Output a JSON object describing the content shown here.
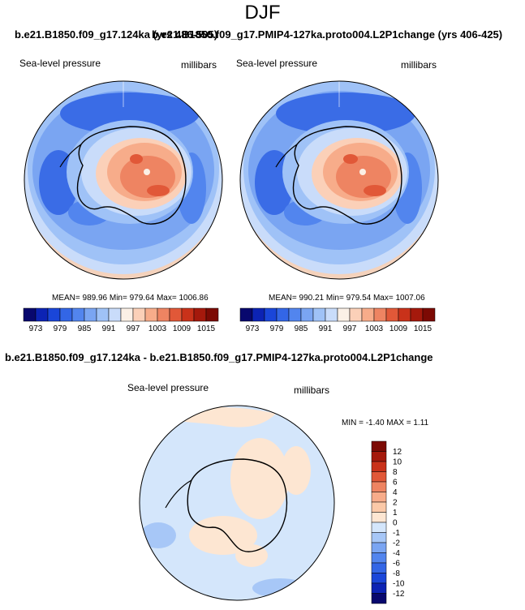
{
  "figure": {
    "title": "DJF",
    "top_case_title_a": "b.e21.B1850.f09_g17.124ka (yrs 486-505)",
    "top_case_title_b": "b.e21.B1850.f09_g17.PMIP4-127ka.proto004.L2P1change (yrs 406-425)",
    "diff_title": "b.e21.B1850.f09_g17.124ka - b.e21.B1850.f09_g17.PMIP4-127ka.proto004.L2P1change"
  },
  "chart_data": [
    {
      "type": "heatmap",
      "projection": "south-polar-stereographic",
      "panel": "left",
      "variable": "Sea-level pressure",
      "units": "millibars",
      "stats": "MEAN= 989.96  Min= 979.64  Max= 1006.86",
      "mean": 989.96,
      "min": 979.64,
      "max": 1006.86,
      "colorbar": {
        "orientation": "horizontal",
        "levels": [
          973,
          976,
          979,
          982,
          985,
          988,
          991,
          994,
          997,
          1000,
          1003,
          1006,
          1009,
          1012,
          1015
        ],
        "tick_labels": [
          "973",
          "979",
          "985",
          "991",
          "997",
          "1003",
          "1009",
          "1015"
        ],
        "colors": [
          "#08086e",
          "#0c23b4",
          "#1a46d9",
          "#3366e6",
          "#5285ee",
          "#7aa5f2",
          "#9fc2f7",
          "#c9dcfa",
          "#fbf0e6",
          "#fbd0b8",
          "#f7ac8a",
          "#ee8462",
          "#e15838",
          "#c9321a",
          "#a5190c",
          "#7c0a04"
        ]
      }
    },
    {
      "type": "heatmap",
      "projection": "south-polar-stereographic",
      "panel": "right",
      "variable": "Sea-level pressure",
      "units": "millibars",
      "stats": "MEAN= 990.21  Min= 979.54  Max= 1007.06",
      "mean": 990.21,
      "min": 979.54,
      "max": 1007.06,
      "colorbar": {
        "orientation": "horizontal",
        "levels": [
          973,
          976,
          979,
          982,
          985,
          988,
          991,
          994,
          997,
          1000,
          1003,
          1006,
          1009,
          1012,
          1015
        ],
        "tick_labels": [
          "973",
          "979",
          "985",
          "991",
          "997",
          "1003",
          "1009",
          "1015"
        ],
        "colors": [
          "#08086e",
          "#0c23b4",
          "#1a46d9",
          "#3366e6",
          "#5285ee",
          "#7aa5f2",
          "#9fc2f7",
          "#c9dcfa",
          "#fbf0e6",
          "#fbd0b8",
          "#f7ac8a",
          "#ee8462",
          "#e15838",
          "#c9321a",
          "#a5190c",
          "#7c0a04"
        ]
      }
    },
    {
      "type": "heatmap",
      "projection": "south-polar-stereographic",
      "panel": "difference",
      "variable": "Sea-level pressure",
      "units": "millibars",
      "stats": "MIN =  -1.40 MAX =   1.11",
      "min": -1.4,
      "max": 1.11,
      "colorbar": {
        "orientation": "vertical",
        "levels": [
          -12,
          -10,
          -8,
          -6,
          -4,
          -2,
          -1,
          0,
          1,
          2,
          4,
          6,
          8,
          10,
          12
        ],
        "tick_labels": [
          "12",
          "10",
          "8",
          "6",
          "4",
          "2",
          "1",
          "0",
          "-1",
          "-2",
          "-4",
          "-6",
          "-8",
          "-10",
          "-12"
        ],
        "colors": [
          "#08086e",
          "#0c23b4",
          "#1a46d9",
          "#3366e6",
          "#5285ee",
          "#7aa5f2",
          "#a7c7f7",
          "#d4e6fb",
          "#fde6d2",
          "#fbc9a8",
          "#f7ac8a",
          "#ee8462",
          "#e15838",
          "#c9321a",
          "#a5190c",
          "#7c0a04"
        ]
      }
    }
  ]
}
